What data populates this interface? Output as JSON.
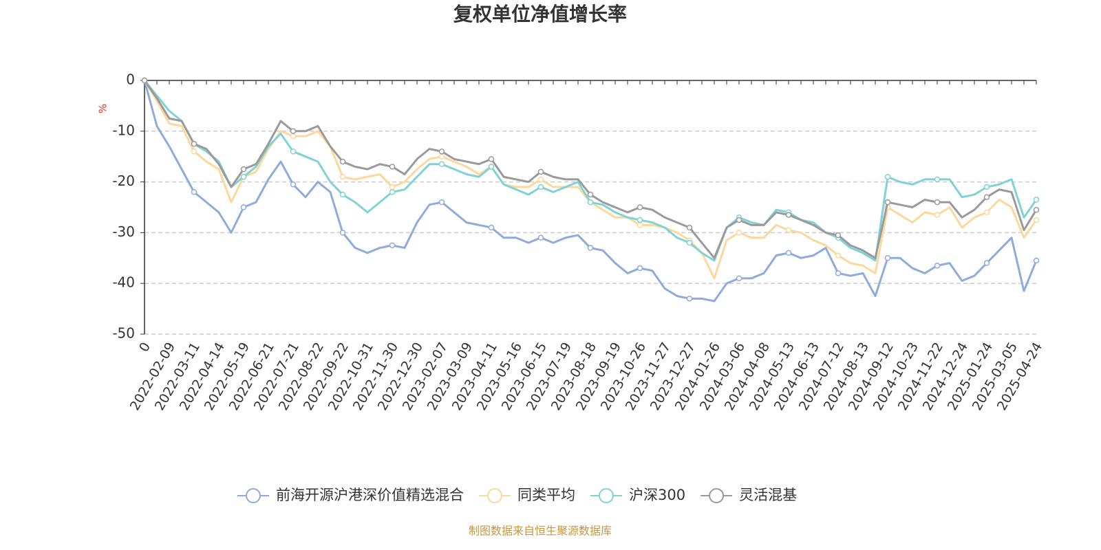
{
  "chart_data": {
    "type": "line",
    "title": "复权单位净值增长率",
    "y_label": "%",
    "footer": "制图数据来自恒生聚源数据库",
    "categories": [
      "0",
      null,
      "2022-02-09",
      null,
      "2022-03-11",
      null,
      "2022-04-14",
      null,
      "2022-05-19",
      null,
      "2022-06-21",
      null,
      "2022-07-21",
      null,
      "2022-08-22",
      null,
      "2022-09-22",
      null,
      "2022-10-31",
      null,
      "2022-11-30",
      null,
      "2022-12-30",
      null,
      "2023-02-07",
      null,
      "2023-03-09",
      null,
      "2023-04-11",
      null,
      "2023-05-16",
      null,
      "2023-06-15",
      null,
      "2023-07-19",
      null,
      "2023-08-18",
      null,
      "2023-09-19",
      null,
      "2023-10-26",
      null,
      "2023-11-27",
      null,
      "2023-12-27",
      null,
      "2024-01-26",
      null,
      "2024-03-06",
      null,
      "2024-04-08",
      null,
      "2024-05-13",
      null,
      "2024-06-13",
      null,
      "2024-07-12",
      null,
      "2024-08-13",
      null,
      "2024-09-12",
      null,
      "2024-10-23",
      null,
      "2024-11-22",
      null,
      "2024-12-24",
      null,
      "2025-01-24",
      null,
      "2025-03-05",
      null,
      "2025-04-24"
    ],
    "series": [
      {
        "name": "前海开源沪港深价值精选混合",
        "color": "#8eabdb",
        "values": [
          0,
          -9,
          -13,
          -17.5,
          -22,
          -24,
          -26,
          -30,
          -25,
          -24,
          -19.5,
          -16,
          -20.5,
          -23,
          -20,
          -22,
          -30,
          -33,
          -34,
          -33,
          -32.5,
          -33,
          -28,
          -24.5,
          -24,
          -26,
          -28,
          -28.5,
          -29,
          -31,
          -31,
          -32,
          -31,
          -32,
          -31,
          -30.5,
          -33,
          -33.5,
          -36,
          -38,
          -37,
          -37.5,
          -41,
          -42.5,
          -43,
          -43,
          -43.5,
          -40,
          -39,
          -39,
          -38,
          -34.5,
          -34,
          -35,
          -34.5,
          -33,
          -38,
          -38.5,
          -38,
          -42.5,
          -35,
          -35,
          -37,
          -38,
          -36.5,
          -36,
          -39.5,
          -38.5,
          -36,
          -33.5,
          -31,
          -41.5,
          -35.5
        ]
      },
      {
        "name": "同类平均",
        "color": "#fdd89a",
        "values": [
          0,
          -4,
          -8.5,
          -9,
          -14,
          -16,
          -17.5,
          -24,
          -19,
          -18,
          -13.5,
          -10,
          -11,
          -11,
          -10,
          -13,
          -19,
          -19.5,
          -19,
          -18.5,
          -21,
          -20,
          -17.5,
          -15.5,
          -15,
          -16,
          -17,
          -18.5,
          -17,
          -20.5,
          -21,
          -21,
          -19.5,
          -21,
          -21,
          -21,
          -24,
          -25.5,
          -27,
          -27,
          -28.5,
          -28.5,
          -29,
          -30,
          -31.5,
          -34,
          -39,
          -31.5,
          -30,
          -31,
          -31,
          -28.5,
          -29.5,
          -30,
          -31.5,
          -32.5,
          -34.5,
          -36,
          -36.5,
          -38,
          -25,
          -26.5,
          -28,
          -26,
          -26.5,
          -25,
          -29,
          -27,
          -26,
          -23.5,
          -25,
          -31,
          -27.5
        ]
      },
      {
        "name": "沪深300",
        "color": "#7fd3d6",
        "values": [
          0,
          -3,
          -6,
          -8,
          -12.5,
          -14,
          -16,
          -21,
          -19,
          -17,
          -13,
          -10.5,
          -14,
          -15,
          -16,
          -20,
          -22.5,
          -24,
          -26,
          -24,
          -22,
          -21.5,
          -19,
          -16.5,
          -16.5,
          -17.5,
          -18.5,
          -19,
          -17,
          -20.5,
          -21.5,
          -22.5,
          -21,
          -22,
          -21,
          -20,
          -24,
          -24.5,
          -26,
          -27,
          -27.5,
          -28,
          -29,
          -31,
          -32,
          -34,
          -35.5,
          -29,
          -27,
          -28,
          -28.5,
          -25.5,
          -26,
          -27.5,
          -28,
          -30,
          -31,
          -33,
          -34,
          -35.5,
          -19,
          -20,
          -20.5,
          -19.5,
          -19.5,
          -19.5,
          -23,
          -22.5,
          -21,
          -20.5,
          -19.5,
          -27,
          -23.5
        ]
      },
      {
        "name": "灵活混基",
        "color": "#9a9a9a",
        "values": [
          0,
          -3.5,
          -7.5,
          -8,
          -12.5,
          -13.5,
          -16.5,
          -21,
          -17.5,
          -16.5,
          -12.5,
          -8,
          -10,
          -10,
          -9,
          -13,
          -16,
          -17,
          -17.5,
          -16.5,
          -17,
          -18.5,
          -15.5,
          -13.5,
          -14,
          -15.5,
          -16,
          -16.5,
          -15.5,
          -19,
          -19.5,
          -20,
          -18,
          -19,
          -19.5,
          -19.5,
          -22.5,
          -24,
          -25,
          -26,
          -25,
          -25.5,
          -27,
          -28,
          -29,
          -32,
          -35,
          -29,
          -27.5,
          -28.5,
          -28.5,
          -26,
          -26.5,
          -27.5,
          -28.5,
          -30,
          -30.5,
          -32.5,
          -33.5,
          -35,
          -24,
          -24.5,
          -25,
          -23.5,
          -24,
          -24,
          -27,
          -25.5,
          -23,
          -21.5,
          -22,
          -29.5,
          -25.5
        ]
      }
    ],
    "ylim": [
      -50,
      0
    ],
    "yticks": [
      0,
      -10,
      -20,
      -30,
      -40,
      -50
    ],
    "grid": true
  }
}
